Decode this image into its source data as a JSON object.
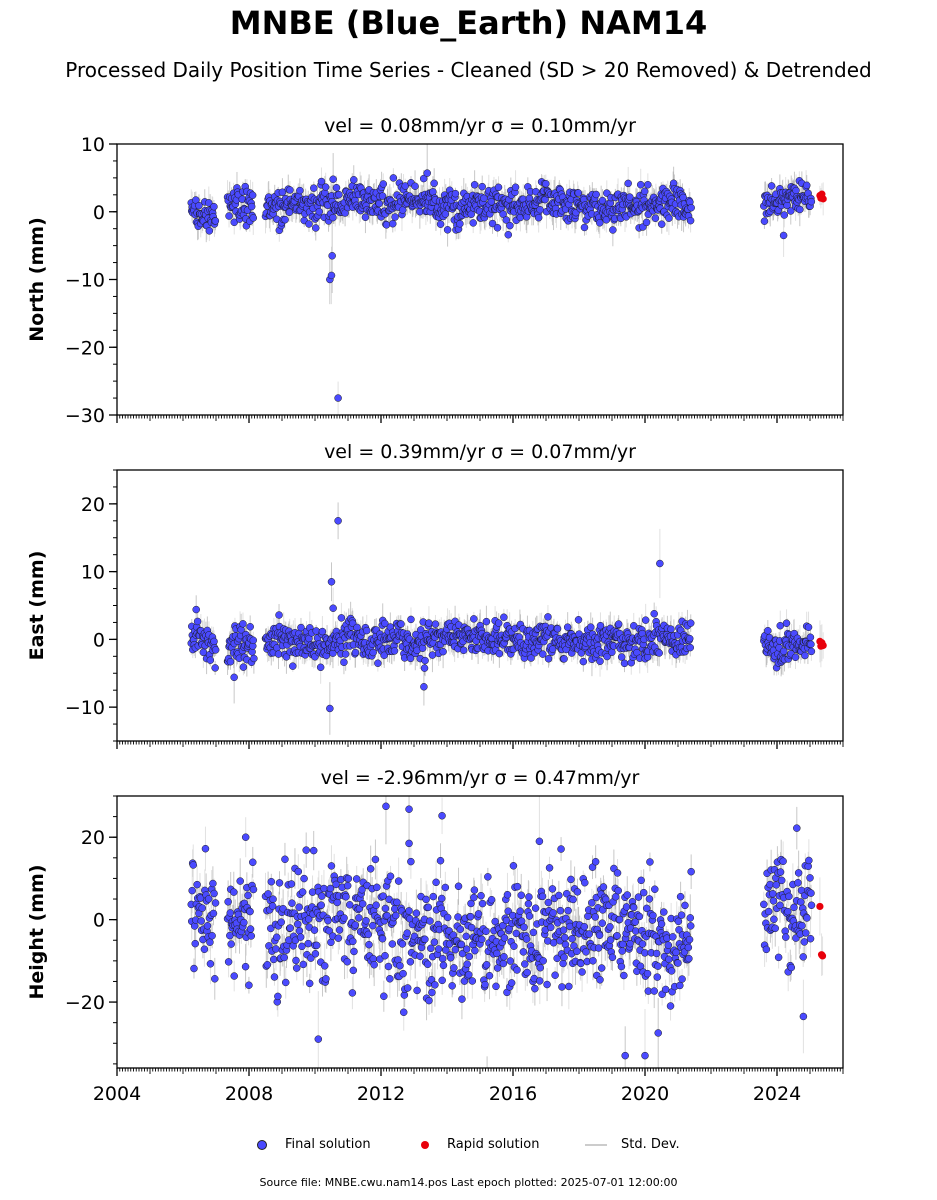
{
  "title": "MNBE (Blue_Earth) NAM14",
  "subtitle": "Processed Daily Position Time Series - Cleaned (SD > 20 Removed) & Detrended",
  "source_line": "Source file: MNBE.cwu.nam14.pos  Last epoch plotted: 2025-07-01 12:00:00",
  "legend": [
    {
      "label": "Final solution",
      "color": "#4a4aff",
      "kind": "dot"
    },
    {
      "label": "Rapid solution",
      "color": "#e8000b",
      "kind": "dot"
    },
    {
      "label": "Std. Dev.",
      "color": "#cccccc",
      "kind": "line"
    }
  ],
  "chart_data": [
    {
      "type": "scatter",
      "title": "vel = 0.08mm/yr   σ = 0.10mm/yr",
      "ylabel": "North (mm)",
      "xlabel": "",
      "xlim": [
        2004.0,
        2026.0
      ],
      "ylim": [
        -30,
        10
      ],
      "yticks": [
        -30,
        -20,
        -10,
        0,
        10
      ],
      "xticks": [
        2004,
        2008,
        2012,
        2016,
        2020,
        2024
      ],
      "xticklabels_shown": false,
      "grid": false,
      "series": [
        {
          "name": "Final solution",
          "color": "#4a4aff",
          "segments": [
            [
              2006.25,
              2007.0,
              0.2,
              1.2
            ],
            [
              2007.35,
              2008.15,
              0.5,
              1.3
            ],
            [
              2008.5,
              2021.4,
              1.0,
              1.3
            ],
            [
              2023.6,
              2025.05,
              1.5,
              1.1
            ]
          ],
          "outliers": [
            [
              2010.45,
              -10.0
            ],
            [
              2010.5,
              -9.4
            ],
            [
              2010.52,
              -6.5
            ],
            [
              2010.55,
              4.8
            ],
            [
              2010.7,
              -27.5
            ],
            [
              2013.4,
              5.7
            ],
            [
              2024.2,
              -3.5
            ]
          ]
        },
        {
          "name": "Rapid solution",
          "color": "#e8000b",
          "points": [
            [
              2025.3,
              2.4
            ],
            [
              2025.33,
              2.0
            ],
            [
              2025.36,
              2.6
            ],
            [
              2025.4,
              1.9
            ]
          ]
        }
      ]
    },
    {
      "type": "scatter",
      "title": "vel = 0.39mm/yr   σ = 0.07mm/yr",
      "ylabel": "East (mm)",
      "xlabel": "",
      "xlim": [
        2004.0,
        2026.0
      ],
      "ylim": [
        -15,
        25
      ],
      "yticks": [
        -10,
        0,
        10,
        20
      ],
      "xticks": [
        2004,
        2008,
        2012,
        2016,
        2020,
        2024
      ],
      "xticklabels_shown": false,
      "grid": false,
      "series": [
        {
          "name": "Final solution",
          "color": "#4a4aff",
          "segments": [
            [
              2006.25,
              2007.0,
              0.0,
              1.3
            ],
            [
              2007.35,
              2008.15,
              -1.0,
              1.5
            ],
            [
              2008.5,
              2021.4,
              0.0,
              1.3
            ],
            [
              2023.6,
              2025.05,
              -1.2,
              1.2
            ]
          ],
          "outliers": [
            [
              2010.45,
              -10.2
            ],
            [
              2010.5,
              8.5
            ],
            [
              2010.55,
              4.6
            ],
            [
              2010.7,
              17.5
            ],
            [
              2013.3,
              -7.0
            ],
            [
              2020.45,
              11.2
            ],
            [
              2006.4,
              4.4
            ],
            [
              2007.55,
              -5.6
            ]
          ]
        },
        {
          "name": "Rapid solution",
          "color": "#e8000b",
          "points": [
            [
              2025.3,
              -0.3
            ],
            [
              2025.33,
              -1.0
            ],
            [
              2025.36,
              -0.5
            ],
            [
              2025.4,
              -0.9
            ]
          ]
        }
      ]
    },
    {
      "type": "scatter",
      "title": "vel = -2.96mm/yr   σ = 0.47mm/yr",
      "ylabel": "Height (mm)",
      "xlabel": "",
      "xlim": [
        2004.0,
        2026.0
      ],
      "ylim": [
        -36,
        30
      ],
      "yticks": [
        -20,
        0,
        20
      ],
      "xticks": [
        2004,
        2008,
        2012,
        2016,
        2020,
        2024
      ],
      "xticklabels": [
        "2004",
        "2008",
        "2012",
        "2016",
        "2020",
        "2024"
      ],
      "xticklabels_shown": true,
      "grid": false,
      "series": [
        {
          "name": "Final solution",
          "color": "#4a4aff",
          "segments": [
            [
              2006.25,
              2007.0,
              1.0,
              5.5
            ],
            [
              2007.35,
              2008.15,
              -1.0,
              6.0
            ],
            [
              2008.5,
              2021.4,
              -3.0,
              7.0
            ],
            [
              2023.6,
              2025.05,
              2.0,
              6.5
            ]
          ],
          "outliers": [
            [
              2012.15,
              27.5
            ],
            [
              2012.85,
              26.8
            ],
            [
              2013.85,
              25.2
            ],
            [
              2016.8,
              19.0
            ],
            [
              2024.6,
              22.2
            ],
            [
              2010.1,
              -29.0
            ],
            [
              2019.4,
              -33.0
            ],
            [
              2020.0,
              -33.0
            ],
            [
              2020.4,
              -27.5
            ],
            [
              2024.8,
              -23.5
            ],
            [
              2007.9,
              20.0
            ],
            [
              2012.85,
              18.5
            ]
          ]
        },
        {
          "name": "Rapid solution",
          "color": "#e8000b",
          "points": [
            [
              2025.3,
              3.2
            ],
            [
              2025.35,
              -8.5
            ],
            [
              2025.38,
              -8.8
            ]
          ]
        }
      ]
    }
  ]
}
